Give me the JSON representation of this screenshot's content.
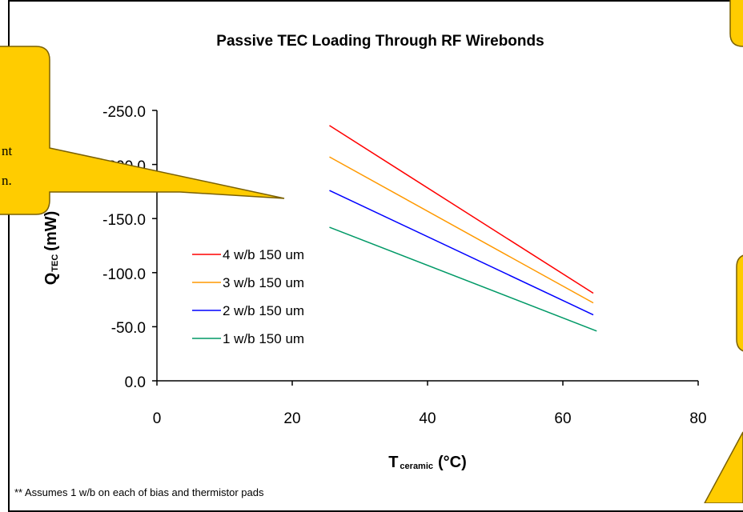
{
  "chart_data": {
    "type": "line",
    "title": "Passive TEC Loading Through RF Wirebonds",
    "xlabel": {
      "main": "T",
      "sub": "ceramic",
      "unit": "(°C)"
    },
    "ylabel": {
      "main": "Q",
      "sub": "TEC",
      "unit": "(mW)"
    },
    "xlim": [
      0,
      80
    ],
    "ylim": [
      0,
      -250
    ],
    "xticks": [
      "0",
      "20",
      "40",
      "60",
      "80"
    ],
    "yticks": [
      "0.0",
      "-50.0",
      "-100.0",
      "-150.0",
      "-200.0",
      "-250.0"
    ],
    "grid": false,
    "legend_position": "lower-left inside plot",
    "series": [
      {
        "name": "4 w/b 150 um",
        "color": "#ff0000",
        "x": [
          25.5,
          64.5
        ],
        "y": [
          -236,
          -81
        ]
      },
      {
        "name": "3 w/b 150 um",
        "color": "#ff9900",
        "x": [
          25.5,
          64.5
        ],
        "y": [
          -207,
          -72
        ]
      },
      {
        "name": "2 w/b 150 um",
        "color": "#0000ff",
        "x": [
          25.5,
          64.5
        ],
        "y": [
          -176,
          -61
        ]
      },
      {
        "name": "1 w/b 150 um",
        "color": "#009966",
        "x": [
          25.5,
          65.0
        ],
        "y": [
          -142,
          -46
        ]
      }
    ],
    "footnote": "** Assumes 1 w/b on each of bias and thermistor pads"
  },
  "callout": {
    "color": "#ffcc00",
    "line1": "nt",
    "line2": "n."
  }
}
